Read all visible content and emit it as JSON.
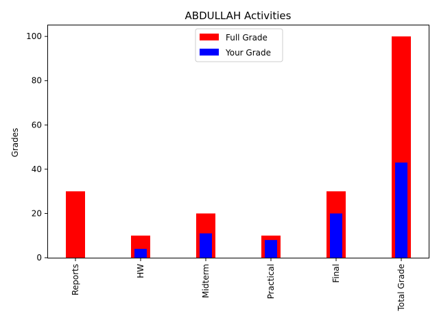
{
  "chart_data": {
    "type": "bar",
    "title": "ABDULLAH Activities",
    "xlabel": "",
    "ylabel": "Grades",
    "categories": [
      "Reports",
      "HW",
      "Midterm",
      "Practical",
      "Final",
      "Total Grade"
    ],
    "series": [
      {
        "name": "Full Grade",
        "values": [
          30,
          10,
          20,
          10,
          30,
          100
        ],
        "color": "#ff0000"
      },
      {
        "name": "Your Grade",
        "values": [
          0,
          4,
          11,
          8,
          20,
          43
        ],
        "color": "#0000ff"
      }
    ],
    "ylim": [
      0,
      105
    ],
    "yticks": [
      0,
      20,
      40,
      60,
      80,
      100
    ],
    "grid": false,
    "legend_position": "top-center"
  }
}
